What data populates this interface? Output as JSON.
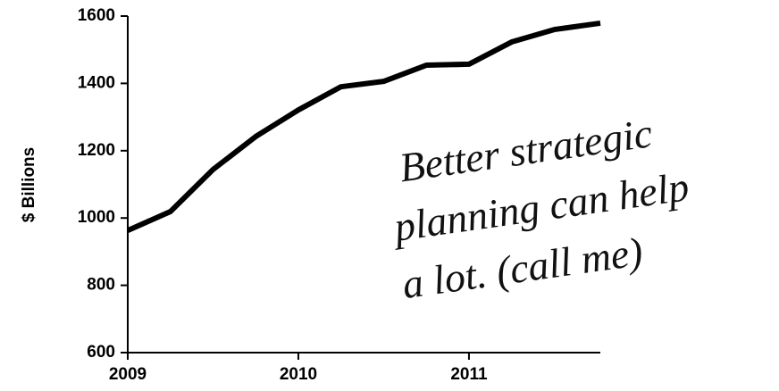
{
  "chart_data": {
    "type": "line",
    "y_label": "$ Billions",
    "annotation": [
      "Better strategic",
      "planning can help",
      "a lot. (call me)"
    ],
    "x": [
      2009.0,
      2009.25,
      2009.5,
      2009.75,
      2010.0,
      2010.25,
      2010.5,
      2010.75,
      2011.0,
      2011.25,
      2011.5,
      2011.77
    ],
    "values": [
      963,
      1019,
      1144,
      1242,
      1321,
      1390,
      1406,
      1454,
      1457,
      1523,
      1560,
      1579
    ],
    "color": "#000000",
    "xlim": [
      2009,
      2011.77
    ],
    "xticks": [
      2009,
      2010,
      2011
    ],
    "ylim": [
      600,
      1600
    ],
    "yticks": [
      600,
      800,
      1000,
      1200,
      1400,
      1600
    ],
    "grid": false
  }
}
